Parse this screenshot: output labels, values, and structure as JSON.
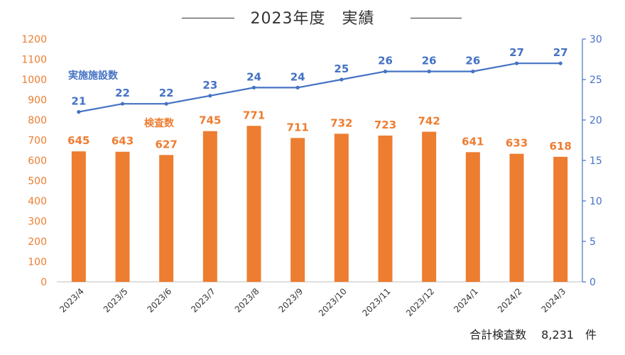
{
  "chart_data": {
    "type": "bar+line",
    "title": "2023年度　実績",
    "categories": [
      "2023/4",
      "2023/5",
      "2023/6",
      "2023/7",
      "2023/8",
      "2023/9",
      "2023/10",
      "2023/11",
      "2023/12",
      "2024/1",
      "2024/2",
      "2024/3"
    ],
    "series": [
      {
        "name": "検査数",
        "type": "bar",
        "axis": "left",
        "values": [
          645,
          643,
          627,
          745,
          771,
          711,
          732,
          723,
          742,
          641,
          633,
          618
        ]
      },
      {
        "name": "実施施設数",
        "type": "line",
        "axis": "right",
        "values": [
          21,
          22,
          22,
          23,
          24,
          24,
          25,
          26,
          26,
          26,
          27,
          27
        ]
      }
    ],
    "y_left": {
      "min": 0,
      "max": 1200,
      "step": 100,
      "ticks": [
        "0",
        "100",
        "200",
        "300",
        "400",
        "500",
        "600",
        "700",
        "800",
        "900",
        "1000",
        "1100",
        "1200"
      ]
    },
    "y_right": {
      "min": 0,
      "max": 30,
      "step": 5,
      "ticks": [
        "0",
        "5",
        "10",
        "15",
        "20",
        "25",
        "30"
      ]
    },
    "grid": false,
    "colors": {
      "bar": "#ED7D31",
      "line": "#4472C4",
      "left_axis_text": "#ED7D31",
      "right_axis_text": "#4472C4"
    },
    "footer": "合計検査数　 8,231　件"
  }
}
